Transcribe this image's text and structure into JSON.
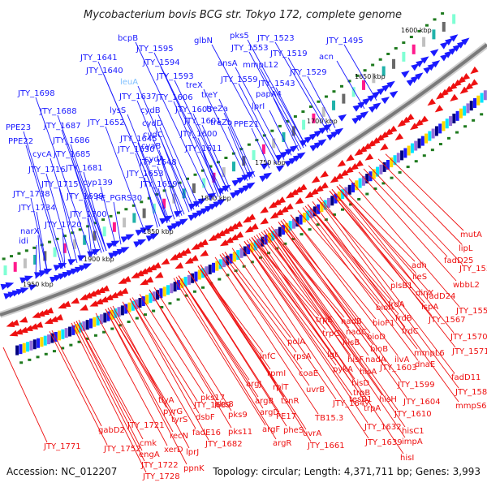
{
  "title": "Mycobacterium bovis BCG str. Tokyo 172, complete genome",
  "footer": {
    "accession": "Accession: NC_012207",
    "summary": "Topology: circular; Length: 4,371,711 bp; Genes: 3,993"
  },
  "colors": {
    "forward_label": "#1a1aff",
    "reverse_label": "#ee1111",
    "highlight_label": "#7fbfff",
    "forward_feature": "#1a1aff",
    "reverse_feature": "#ee1111",
    "backbone": "#7a7a7a",
    "tick": "#1e7a1e"
  },
  "kbp_marks": [
    "1600 kbp",
    "1650 kbp",
    "1700 kbp",
    "1750 kbp",
    "1800 kbp",
    "1850 kbp",
    "1900 kbp",
    "1950 kbp"
  ],
  "forward_genes": [
    "pks5",
    "JTY_1523",
    "JTY_1495",
    "glbN",
    "JTY_1553",
    "JTY_1519",
    "bcpB",
    "JTY_1595",
    "acn",
    "ansA",
    "mmpL12",
    "JTY_1641",
    "JTY_1594",
    "JTY_1529",
    "JTY_1640",
    "JTY_1593",
    "JTY_1559",
    "JTY_1543",
    "leuA",
    "treX",
    "papA4",
    "treY",
    "JTY_1637",
    "JTY_1606",
    "JTY_1698",
    "treZa",
    "lprI",
    "lysS",
    "cydB",
    "JTY_1605",
    "JTY_1688",
    "JTY_1652",
    "cydD",
    "JTY_1601",
    "treZb",
    "PPE21",
    "JTY_1687",
    "PPE23",
    "cydC",
    "JTY_1600",
    "JTY_1645",
    "JTY_1686",
    "cyaB",
    "PPE22",
    "JTY_1650",
    "cydA",
    "JTY_1611",
    "cycA",
    "JTY_1685",
    "JTY_1648",
    "JTY_1716",
    "JTY_1681",
    "JTY_1653",
    "cyp139",
    "JTY_1715",
    "JTY_1659",
    "JTY_1738",
    "JTY_1699",
    "PE_PGRS30",
    "JTY_1734",
    "JTY_1700",
    "JTY_1720",
    "narX",
    "idi"
  ],
  "reverse_genes": [
    "mutA",
    "lipL",
    "fadD25",
    "adh",
    "JTY_1550",
    "ileS",
    "wbbL2",
    "dinX",
    "fadD24",
    "lspA",
    "JTY_1558",
    "plsB1",
    "frdA",
    "JTY_1567",
    "bioA",
    "frdB",
    "nadB",
    "trpE",
    "bioF1",
    "frdC",
    "JTY_1570",
    "nadC",
    "bioD",
    "trpC",
    "hisB",
    "JTY_1571",
    "mmpL6",
    "dnaE",
    "ilvA",
    "nadA",
    "hisF",
    "bioB",
    "polA",
    "lgt",
    "infC",
    "rpsA",
    "hisA",
    "fadD11",
    "JTY_1603",
    "hisD",
    "rpmI",
    "coaE",
    "JTY_1599",
    "trpB",
    "tesB1",
    "JTY_1582",
    "argJ",
    "rplT",
    "pykA",
    "hisH",
    "JTY_1604",
    "argB",
    "tsnR",
    "uvrB",
    "trpA",
    "mmpS6",
    "JTY_1610",
    "argD",
    "JTY_1647",
    "PE17",
    "TB15.3",
    "hisC1",
    "JTY_1632",
    "pheS",
    "uvrA",
    "impA",
    "JTY_1639",
    "argF",
    "JTY_1661",
    "argR",
    "hisI",
    "pks8",
    "pks17",
    "JTY_1689",
    "pks9",
    "fadE16",
    "dsbF",
    "pks11",
    "JTY_1682",
    "tlyA",
    "pyrG",
    "JTY_1721",
    "tyrS",
    "gabD2",
    "recN",
    "xerD",
    "JTY_1752",
    "cmk",
    "engA",
    "lprJ",
    "JTY_1771",
    "JTY_1722",
    "ppnK",
    "JTY_1728"
  ]
}
